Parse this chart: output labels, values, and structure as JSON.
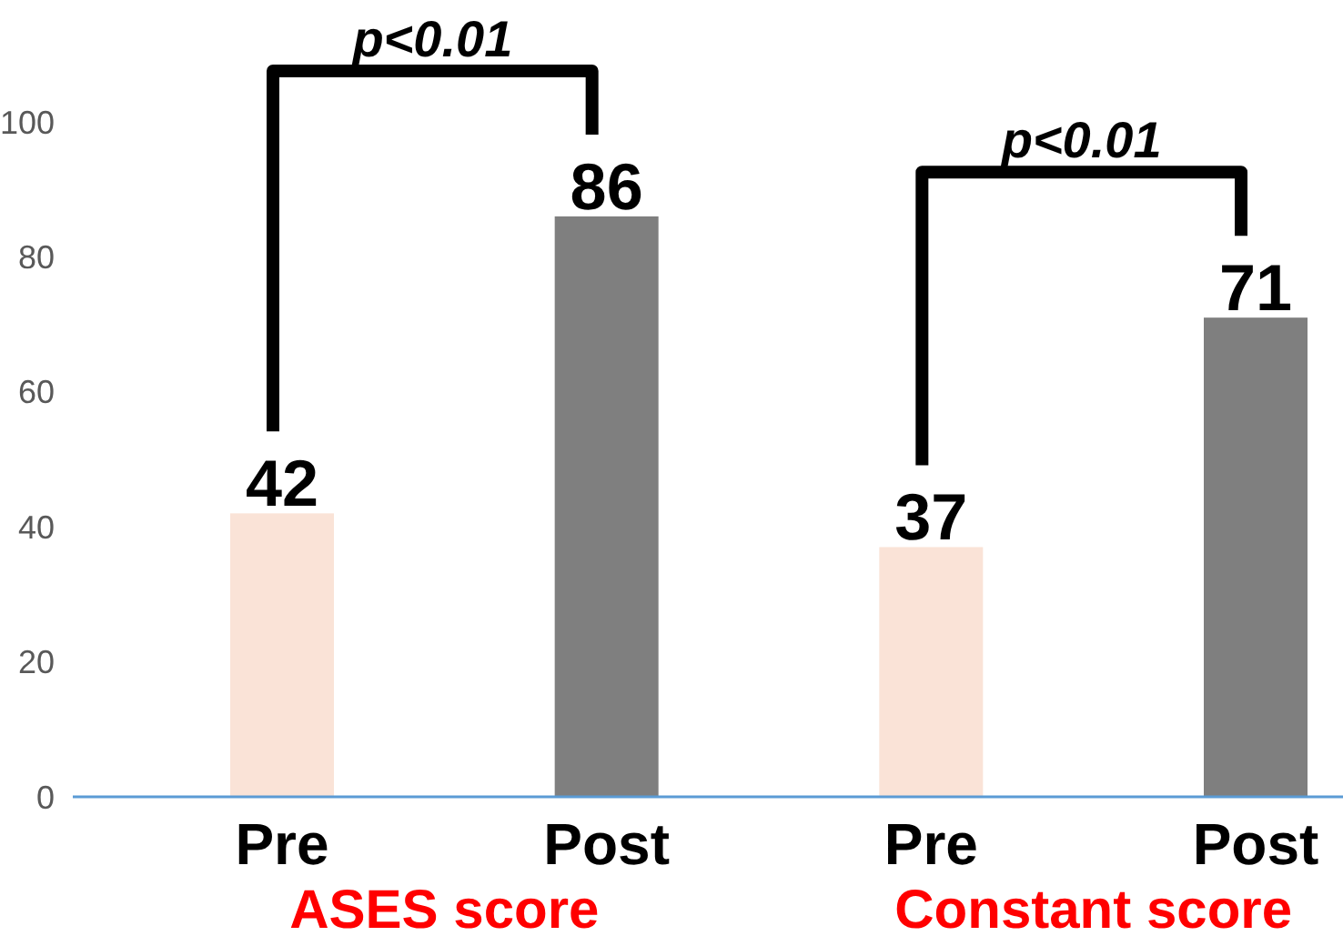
{
  "chart_data": {
    "type": "bar",
    "categories": [
      "Pre",
      "Post",
      "Pre",
      "Post"
    ],
    "values": [
      42,
      86,
      37,
      71
    ],
    "colors": [
      "#fae3d7",
      "#7f7f7f",
      "#fae3d7",
      "#7f7f7f"
    ],
    "data_labels": true,
    "ylim": [
      0,
      100
    ],
    "yticks": [
      0,
      20,
      40,
      60,
      80,
      100
    ],
    "grid": false,
    "annotations": [
      "p<0.01",
      "p<0.01",
      "ASES score",
      "Constant score"
    ]
  }
}
